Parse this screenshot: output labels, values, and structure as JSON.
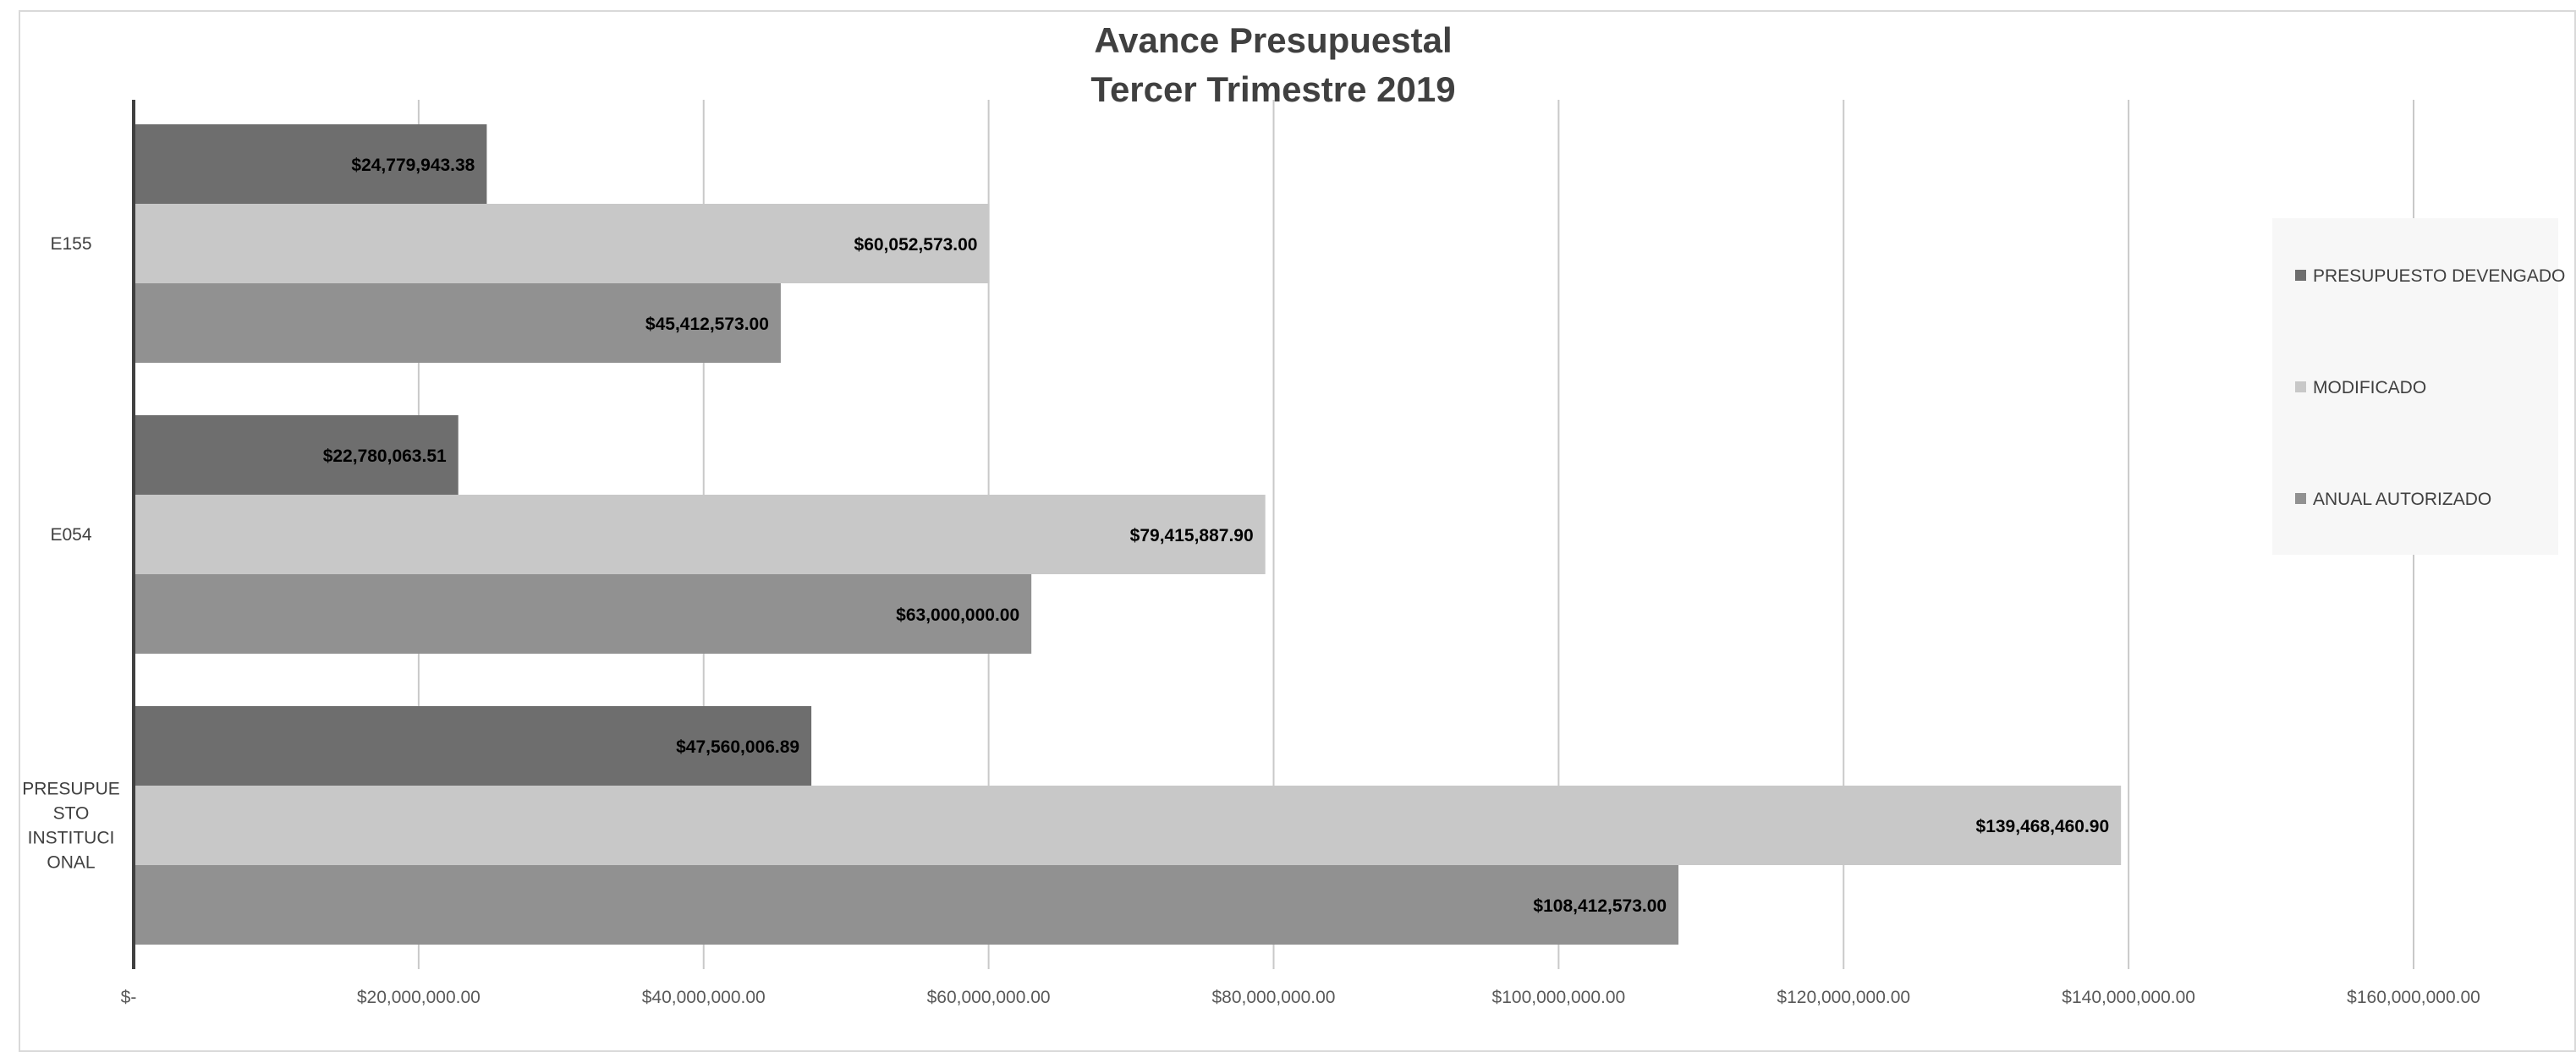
{
  "chart_data": {
    "type": "bar",
    "orientation": "horizontal",
    "title": [
      "Avance Presupuestal",
      "Tercer Trimestre 2019"
    ],
    "categories": [
      "E155",
      "E054",
      "PRESUPUESTO INSTITUCIONAL"
    ],
    "category_label_lines": [
      [
        "E155"
      ],
      [
        "E054"
      ],
      [
        "PRESUPUE",
        "STO",
        "INSTITUCI",
        "ONAL"
      ]
    ],
    "series": [
      {
        "name": "PRESUPUESTO DEVENGADO",
        "color": "#6e6e6e",
        "values": [
          24779943.38,
          22780063.51,
          47560006.89
        ],
        "labels": [
          "$24,779,943.38",
          "$22,780,063.51",
          "$47,560,006.89"
        ]
      },
      {
        "name": "MODIFICADO",
        "color": "#c8c8c8",
        "values": [
          60052573.0,
          79415887.9,
          139468460.9
        ],
        "labels": [
          "$60,052,573.00",
          "$79,415,887.90",
          "$139,468,460.90"
        ]
      },
      {
        "name": "ANUAL AUTORIZADO",
        "color": "#919191",
        "values": [
          45412573.0,
          63000000.0,
          108412573.0
        ],
        "labels": [
          "$45,412,573.00",
          "$63,000,000.00",
          "$108,412,573.00"
        ]
      }
    ],
    "xlim": [
      0,
      160000000
    ],
    "x_ticks": [
      0,
      20000000,
      40000000,
      60000000,
      80000000,
      100000000,
      120000000,
      140000000,
      160000000
    ],
    "x_tick_labels": [
      "$-",
      "$20,000,000.00",
      "$40,000,000.00",
      "$60,000,000.00",
      "$80,000,000.00",
      "$100,000,000.00",
      "$120,000,000.00",
      "$140,000,000.00",
      "$160,000,000.00"
    ],
    "grid": true,
    "legend_position": "right"
  }
}
